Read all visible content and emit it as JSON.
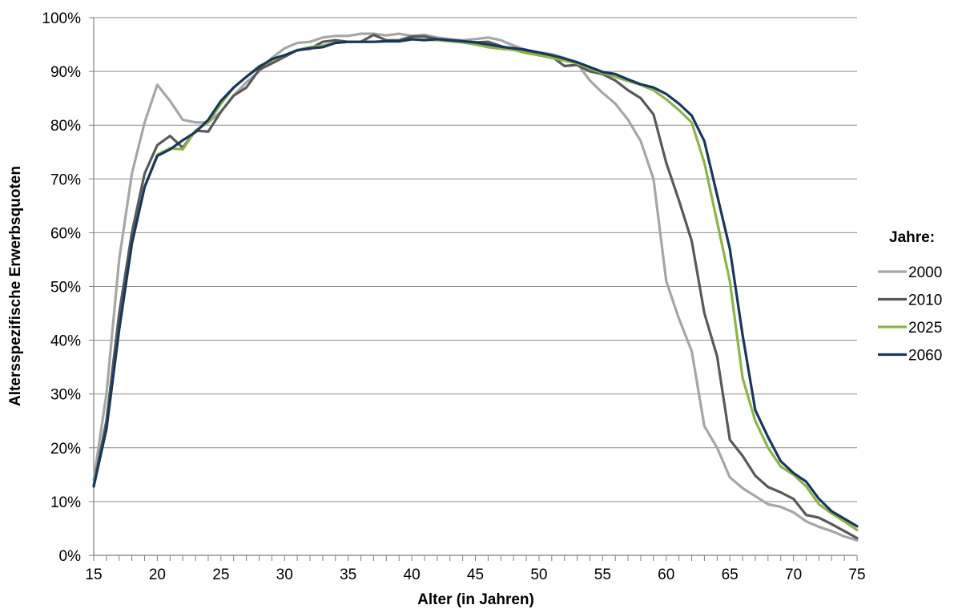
{
  "chart_data": {
    "type": "line",
    "title": "",
    "xlabel": "Alter (in Jahren)",
    "ylabel": "Altersspezifische Erwerbsquoten",
    "xlim": [
      15,
      75
    ],
    "ylim": [
      0,
      100
    ],
    "x_ticks": [
      15,
      20,
      25,
      30,
      35,
      40,
      45,
      50,
      55,
      60,
      65,
      70,
      75
    ],
    "y_ticks": [
      0,
      10,
      20,
      30,
      40,
      50,
      60,
      70,
      80,
      90,
      100
    ],
    "y_tick_labels": [
      "0%",
      "10%",
      "20%",
      "30%",
      "40%",
      "50%",
      "60%",
      "70%",
      "80%",
      "90%",
      "100%"
    ],
    "grid": "horizontal",
    "legend": {
      "title": "Jahre:",
      "position": "right"
    },
    "x": [
      15,
      16,
      17,
      18,
      19,
      20,
      21,
      22,
      23,
      24,
      25,
      26,
      27,
      28,
      29,
      30,
      31,
      32,
      33,
      34,
      35,
      36,
      37,
      38,
      39,
      40,
      41,
      42,
      43,
      44,
      45,
      46,
      47,
      48,
      49,
      50,
      51,
      52,
      53,
      54,
      55,
      56,
      57,
      58,
      59,
      60,
      61,
      62,
      63,
      64,
      65,
      66,
      67,
      68,
      69,
      70,
      71,
      72,
      73,
      74,
      75
    ],
    "series": [
      {
        "name": "2000",
        "color": "#a6a6a6",
        "values": [
          14,
          30,
          55,
          71,
          80.5,
          87.5,
          84.5,
          81,
          80.5,
          80.5,
          82.5,
          85.5,
          88,
          90,
          92.5,
          94.3,
          95.3,
          95.5,
          96.3,
          96.6,
          96.6,
          97,
          97,
          96.7,
          97,
          96.6,
          96.8,
          96.3,
          96,
          95.8,
          96,
          96.3,
          95.8,
          94.8,
          94,
          93.5,
          93.2,
          92.5,
          91.5,
          88.3,
          86,
          84,
          81,
          77,
          70,
          51,
          44,
          38,
          24,
          20,
          14.5,
          12.5,
          11,
          9.5,
          9,
          8,
          6.3,
          5.3,
          4.5,
          3.5,
          2.8
        ]
      },
      {
        "name": "2010",
        "color": "#595959",
        "values": [
          13,
          25,
          45,
          60,
          71,
          76.3,
          78,
          75.8,
          79,
          78.8,
          82.5,
          85.5,
          87,
          90.3,
          91.5,
          92.7,
          94,
          94.2,
          95.5,
          95.8,
          95.5,
          95.5,
          96.8,
          95.8,
          95.8,
          96.5,
          96.5,
          96,
          95.8,
          95.6,
          95.4,
          95.5,
          94.7,
          94,
          93.8,
          93,
          92.8,
          91,
          91.2,
          90,
          89.5,
          88.3,
          86.5,
          85,
          82,
          73,
          66,
          58.5,
          45,
          37,
          21.5,
          18.5,
          14.8,
          12.7,
          11.7,
          10.5,
          7.5,
          7,
          5.8,
          4.5,
          3.2
        ]
      },
      {
        "name": "2025",
        "color": "#8db449",
        "values": [
          13,
          23.5,
          42,
          58,
          68.5,
          74.5,
          75.7,
          75.5,
          79,
          80.5,
          84,
          87,
          89,
          91,
          92,
          93,
          94,
          94.5,
          94.8,
          95.3,
          95.5,
          95.5,
          95.5,
          95.6,
          95.6,
          95.9,
          95.9,
          95.8,
          95.6,
          95.4,
          95,
          94.5,
          94.2,
          94,
          93.4,
          93,
          92.5,
          92,
          91.5,
          90.5,
          89.7,
          89,
          88.2,
          87.5,
          86.5,
          84.8,
          82.8,
          80.5,
          73,
          62,
          51,
          33,
          25,
          20,
          16.5,
          15,
          12.8,
          9.5,
          7.8,
          6.3,
          4.7
        ]
      },
      {
        "name": "2060",
        "color": "#17375e",
        "values": [
          12.8,
          23.5,
          42,
          58,
          68.5,
          74.3,
          75.5,
          77.2,
          78.7,
          81,
          84.5,
          87,
          89,
          90.8,
          92.3,
          93,
          93.9,
          94.3,
          94.5,
          95.3,
          95.5,
          95.5,
          95.5,
          95.6,
          95.6,
          96,
          95.8,
          96,
          95.8,
          95.6,
          95.4,
          95,
          94.6,
          94.3,
          94,
          93.5,
          93,
          92.4,
          91.7,
          90.8,
          89.9,
          89.5,
          88.5,
          87.6,
          87,
          85.8,
          84,
          81.8,
          77,
          67,
          57,
          41,
          27,
          22,
          17.5,
          15.3,
          13.7,
          10.5,
          8.2,
          6.8,
          5.4
        ]
      }
    ]
  }
}
